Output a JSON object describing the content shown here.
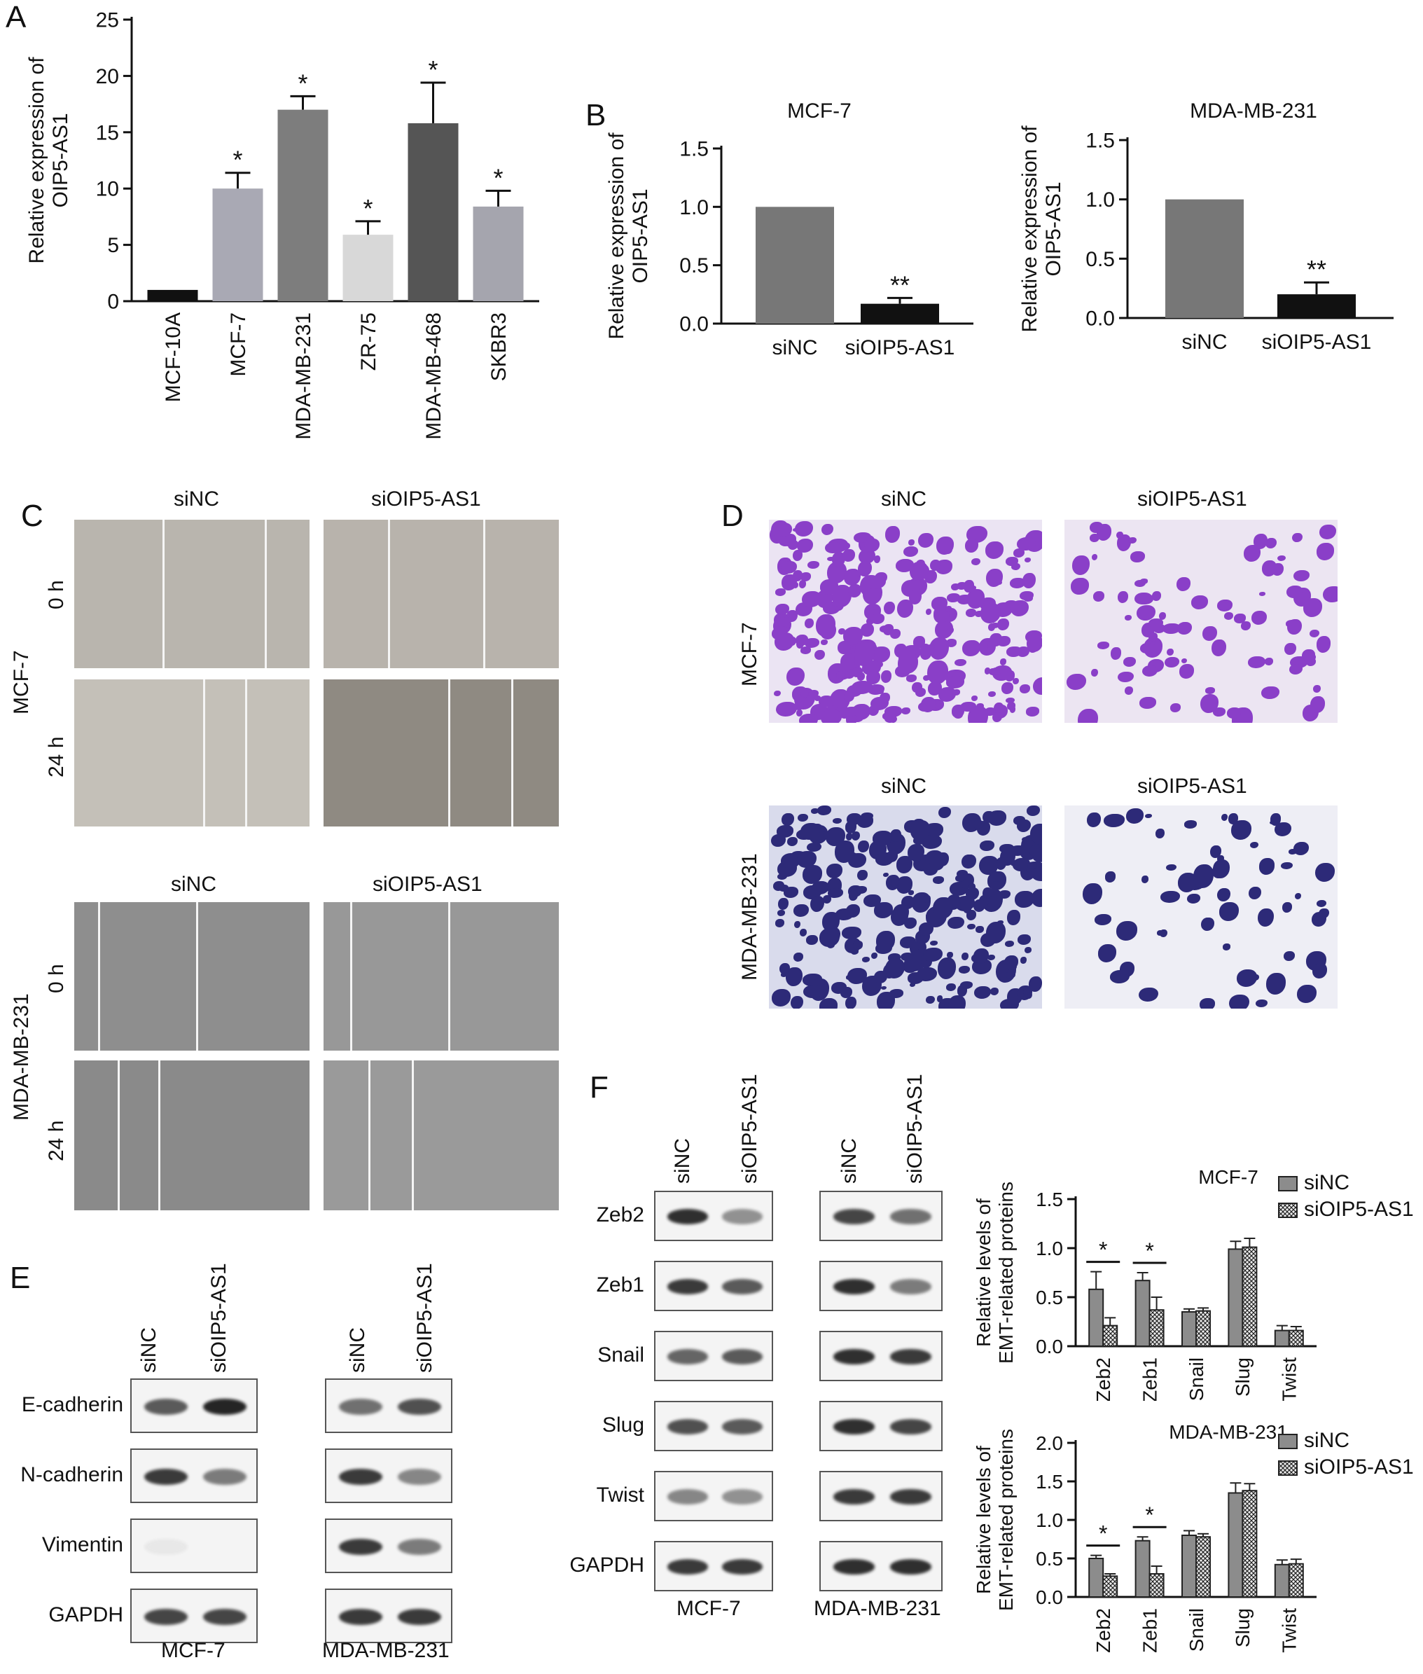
{
  "panels": {
    "A": {
      "letter": "A"
    },
    "B": {
      "letter": "B"
    },
    "C": {
      "letter": "C",
      "col1": "siNC",
      "col2": "siOIP5-AS1",
      "row_mcf": "MCF-7",
      "row_mda": "MDA-MB-231",
      "t0": "0 h",
      "t24": "24 h"
    },
    "D": {
      "letter": "D",
      "col1": "siNC",
      "col2": "siOIP5-AS1",
      "row_mcf": "MCF-7",
      "row_mda": "MDA-MB-231"
    },
    "E": {
      "letter": "E",
      "col1": "siNC",
      "col2": "siOIP5-AS1",
      "rows": [
        "E-cadherin",
        "N-cadherin",
        "Vimentin",
        "GAPDH"
      ],
      "cap_left": "MCF-7",
      "cap_right": "MDA-MB-231"
    },
    "F": {
      "letter": "F",
      "col1": "siNC",
      "col2": "siOIP5-AS1",
      "rows": [
        "Zeb2",
        "Zeb1",
        "Snail",
        "Slug",
        "Twist",
        "GAPDH"
      ],
      "cap_left": "MCF-7",
      "cap_right": "MDA-MB-231"
    }
  },
  "colors": {
    "siNC": "#7a7a7a",
    "siOIP5": "#1a1a1a",
    "violet": "#8a3fc8",
    "navy": "#2d2a78"
  },
  "chart_data": [
    {
      "id": "A",
      "type": "bar",
      "ylabel": "Relative expression of\nOIP5-AS1",
      "categories": [
        "MCF-10A",
        "MCF-7",
        "MDA-MB-231",
        "ZR-75",
        "MDA-MB-468",
        "SKBR3"
      ],
      "values": [
        1.0,
        10.0,
        17.0,
        5.9,
        15.8,
        8.4
      ],
      "errors": [
        0,
        1.4,
        1.2,
        1.2,
        3.6,
        1.4
      ],
      "sig": [
        "",
        "*",
        "*",
        "*",
        "*",
        "*"
      ],
      "bar_colors": [
        "#111111",
        "#a9a9b4",
        "#7d7d7d",
        "#d8d8d8",
        "#555555",
        "#a5a5ae"
      ],
      "ylim": [
        0,
        25
      ],
      "yticks": [
        "0",
        "5",
        "10",
        "15",
        "20",
        "25"
      ]
    },
    {
      "id": "B1",
      "type": "bar",
      "title": "MCF-7",
      "ylabel": "Relative expression of\nOIP5-AS1",
      "categories": [
        "siNC",
        "siOIP5-AS1"
      ],
      "values": [
        1.0,
        0.17
      ],
      "errors": [
        0,
        0.05
      ],
      "sig": [
        "",
        "**"
      ],
      "bar_colors": [
        "#777777",
        "#111111"
      ],
      "ylim": [
        0,
        1.5
      ],
      "yticks": [
        "0.0",
        "0.5",
        "1.0",
        "1.5"
      ]
    },
    {
      "id": "B2",
      "type": "bar",
      "title": "MDA-MB-231",
      "ylabel": "Relative expression of\nOIP5-AS1",
      "categories": [
        "siNC",
        "siOIP5-AS1"
      ],
      "values": [
        1.0,
        0.2
      ],
      "errors": [
        0,
        0.1
      ],
      "sig": [
        "",
        "**"
      ],
      "bar_colors": [
        "#777777",
        "#111111"
      ],
      "ylim": [
        0,
        1.5
      ],
      "yticks": [
        "0.0",
        "0.5",
        "1.0",
        "1.5"
      ]
    },
    {
      "id": "F1",
      "type": "bar",
      "title": "MCF-7",
      "ylabel": "Relative levels of\nEMT-related proteins",
      "categories": [
        "Zeb2",
        "Zeb1",
        "Snail",
        "Slug",
        "Twist"
      ],
      "series": [
        {
          "name": "siNC",
          "values": [
            0.58,
            0.67,
            0.35,
            0.99,
            0.16
          ],
          "errors": [
            0.18,
            0.08,
            0.03,
            0.08,
            0.05
          ]
        },
        {
          "name": "siOIP5-AS1",
          "values": [
            0.21,
            0.37,
            0.36,
            1.01,
            0.16
          ],
          "errors": [
            0.08,
            0.13,
            0.03,
            0.09,
            0.04
          ]
        }
      ],
      "sig": [
        "*",
        "*",
        "",
        "",
        ""
      ],
      "ylim": [
        0,
        1.5
      ],
      "yticks": [
        "0.0",
        "0.5",
        "1.0",
        "1.5"
      ]
    },
    {
      "id": "F2",
      "type": "bar",
      "title": "MDA-MB-231",
      "ylabel": "Relative levels of\nEMT-related proteins",
      "categories": [
        "Zeb2",
        "Zeb1",
        "Snail",
        "Slug",
        "Twist"
      ],
      "series": [
        {
          "name": "siNC",
          "values": [
            0.5,
            0.73,
            0.8,
            1.35,
            0.42
          ],
          "errors": [
            0.04,
            0.05,
            0.06,
            0.13,
            0.06
          ]
        },
        {
          "name": "siOIP5-AS1",
          "values": [
            0.27,
            0.3,
            0.78,
            1.38,
            0.43
          ],
          "errors": [
            0.03,
            0.1,
            0.04,
            0.09,
            0.06
          ]
        }
      ],
      "sig": [
        "*",
        "*",
        "",
        "",
        ""
      ],
      "ylim": [
        0,
        2.0
      ],
      "yticks": [
        "0.0",
        "0.5",
        "1.0",
        "1.5",
        "2.0"
      ]
    }
  ]
}
